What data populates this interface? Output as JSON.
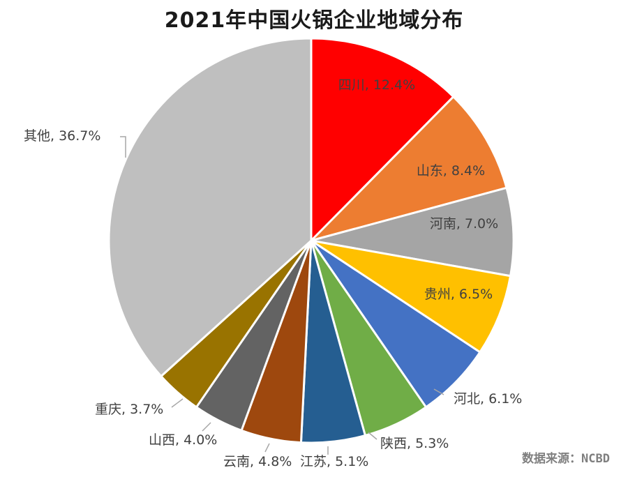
{
  "chart_data": {
    "type": "pie",
    "title": "2021年中国火锅企业地域分布",
    "slices": [
      {
        "name": "四川",
        "value": 12.4,
        "label": "四川, 12.4%",
        "color": "#ff0000"
      },
      {
        "name": "山东",
        "value": 8.4,
        "label": "山东, 8.4%",
        "color": "#ed7d31"
      },
      {
        "name": "河南",
        "value": 7.0,
        "label": "河南, 7.0%",
        "color": "#a5a5a5"
      },
      {
        "name": "贵州",
        "value": 6.5,
        "label": "贵州, 6.5%",
        "color": "#ffc000"
      },
      {
        "name": "河北",
        "value": 6.1,
        "label": "河北, 6.1%",
        "color": "#4472c4"
      },
      {
        "name": "陕西",
        "value": 5.3,
        "label": "陕西, 5.3%",
        "color": "#70ad47"
      },
      {
        "name": "江苏",
        "value": 5.1,
        "label": "江苏, 5.1%",
        "color": "#255e91"
      },
      {
        "name": "云南",
        "value": 4.8,
        "label": "云南, 4.8%",
        "color": "#9e480e"
      },
      {
        "name": "山西",
        "value": 4.0,
        "label": "山西, 4.0%",
        "color": "#636363"
      },
      {
        "name": "重庆",
        "value": 3.7,
        "label": "重庆, 3.7%",
        "color": "#997300"
      },
      {
        "name": "其他",
        "value": 36.7,
        "label": "其他, 36.7%",
        "color": "#bfbfbf"
      }
    ]
  },
  "source": "数据来源：NCBD"
}
